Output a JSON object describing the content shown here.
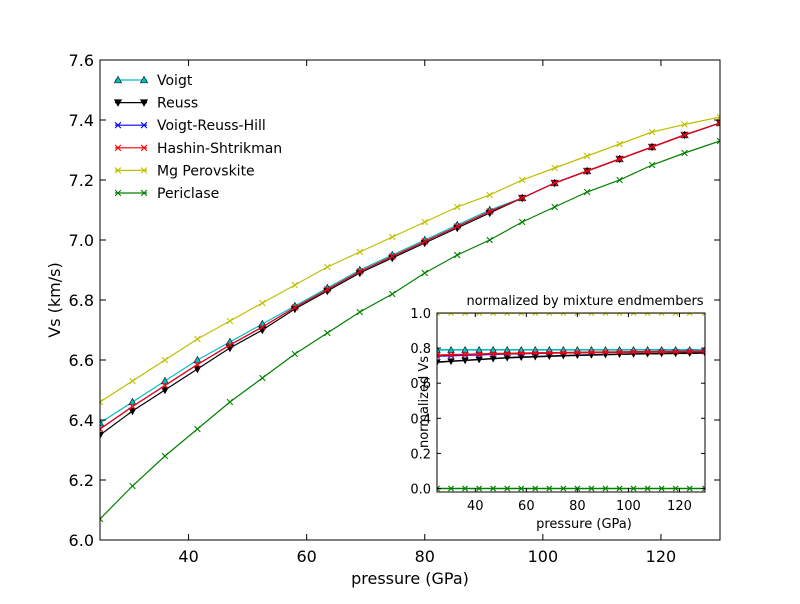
{
  "chart_data": [
    {
      "type": "line",
      "xlabel": "pressure (GPa)",
      "ylabel": "Vs (km/s)",
      "xlim": [
        25,
        130
      ],
      "ylim": [
        6.0,
        7.6
      ],
      "xticks": [
        "40",
        "60",
        "80",
        "100",
        "120"
      ],
      "yticks": [
        "6.0",
        "6.2",
        "6.4",
        "6.6",
        "6.8",
        "7.0",
        "7.2",
        "7.4",
        "7.6"
      ],
      "legend_position": "top-left",
      "grid": false,
      "x": [
        25,
        30.5,
        36,
        41.5,
        47,
        52.5,
        58,
        63.5,
        69,
        74.5,
        80,
        85.5,
        91,
        96.5,
        102,
        107.5,
        113,
        118.5,
        124,
        130
      ],
      "series": [
        {
          "name": "Voigt",
          "color": "#00bfbf",
          "marker": "triangle-up",
          "values": [
            6.39,
            6.46,
            6.53,
            6.6,
            6.66,
            6.72,
            6.78,
            6.84,
            6.9,
            6.95,
            7.0,
            7.05,
            7.1,
            7.14,
            7.19,
            7.23,
            7.27,
            7.31,
            7.35,
            7.39
          ]
        },
        {
          "name": "Reuss",
          "color": "#000000",
          "marker": "triangle-down",
          "values": [
            6.35,
            6.43,
            6.5,
            6.57,
            6.64,
            6.7,
            6.77,
            6.83,
            6.89,
            6.94,
            6.99,
            7.04,
            7.09,
            7.14,
            7.19,
            7.23,
            7.27,
            7.31,
            7.35,
            7.39
          ]
        },
        {
          "name": "Voigt-Reuss-Hill",
          "color": "#0000ff",
          "marker": "x",
          "values": [
            6.37,
            6.445,
            6.515,
            6.585,
            6.65,
            6.71,
            6.775,
            6.835,
            6.895,
            6.945,
            6.995,
            7.045,
            7.095,
            7.14,
            7.19,
            7.23,
            7.27,
            7.31,
            7.35,
            7.39
          ]
        },
        {
          "name": "Hashin-Shtrikman",
          "color": "#ff0000",
          "marker": "x",
          "values": [
            6.37,
            6.445,
            6.515,
            6.585,
            6.65,
            6.71,
            6.775,
            6.835,
            6.895,
            6.945,
            6.995,
            7.045,
            7.095,
            7.14,
            7.19,
            7.23,
            7.27,
            7.31,
            7.35,
            7.39
          ]
        },
        {
          "name": "Mg Perovskite",
          "color": "#bfbf00",
          "marker": "x",
          "values": [
            6.46,
            6.53,
            6.6,
            6.67,
            6.73,
            6.79,
            6.85,
            6.91,
            6.96,
            7.01,
            7.06,
            7.11,
            7.15,
            7.2,
            7.24,
            7.28,
            7.32,
            7.36,
            7.385,
            7.41
          ]
        },
        {
          "name": "Periclase",
          "color": "#008000",
          "marker": "x",
          "values": [
            6.07,
            6.18,
            6.28,
            6.37,
            6.46,
            6.54,
            6.62,
            6.69,
            6.76,
            6.82,
            6.89,
            6.95,
            7.0,
            7.06,
            7.11,
            7.16,
            7.2,
            7.25,
            7.29,
            7.33
          ]
        }
      ]
    },
    {
      "type": "line",
      "title": "normalized by mixture endmembers",
      "xlabel": "pressure (GPa)",
      "ylabel": "normalized Vs",
      "xlim": [
        25,
        130
      ],
      "ylim": [
        -0.02,
        1.0
      ],
      "xticks": [
        "40",
        "60",
        "80",
        "100",
        "120"
      ],
      "yticks": [
        "0.0",
        "0.2",
        "0.4",
        "0.6",
        "0.8",
        "1.0"
      ],
      "grid": false,
      "x": [
        25,
        30.5,
        36,
        41.5,
        47,
        52.5,
        58,
        63.5,
        69,
        74.5,
        80,
        85.5,
        91,
        96.5,
        102,
        107.5,
        113,
        118.5,
        124,
        130
      ],
      "series": [
        {
          "name": "Voigt",
          "color": "#00bfbf",
          "marker": "triangle-up",
          "values": [
            0.79,
            0.79,
            0.79,
            0.79,
            0.79,
            0.79,
            0.79,
            0.79,
            0.79,
            0.79,
            0.79,
            0.79,
            0.79,
            0.79,
            0.79,
            0.79,
            0.79,
            0.79,
            0.79,
            0.79
          ]
        },
        {
          "name": "Reuss",
          "color": "#000000",
          "marker": "triangle-down",
          "values": [
            0.72,
            0.725,
            0.73,
            0.735,
            0.74,
            0.745,
            0.748,
            0.751,
            0.754,
            0.757,
            0.759,
            0.761,
            0.763,
            0.765,
            0.767,
            0.768,
            0.769,
            0.77,
            0.771,
            0.772
          ]
        },
        {
          "name": "Voigt-Reuss-Hill",
          "color": "#0000ff",
          "marker": "x",
          "values": [
            0.755,
            0.757,
            0.76,
            0.762,
            0.765,
            0.767,
            0.769,
            0.77,
            0.772,
            0.773,
            0.774,
            0.775,
            0.776,
            0.777,
            0.778,
            0.779,
            0.78,
            0.78,
            0.781,
            0.781
          ]
        },
        {
          "name": "Hashin-Shtrikman",
          "color": "#ff0000",
          "marker": "x",
          "values": [
            0.76,
            0.762,
            0.764,
            0.766,
            0.768,
            0.769,
            0.771,
            0.772,
            0.773,
            0.774,
            0.775,
            0.776,
            0.777,
            0.777,
            0.778,
            0.778,
            0.779,
            0.779,
            0.78,
            0.78
          ]
        },
        {
          "name": "Mg Perovskite",
          "color": "#bfbf00",
          "marker": "x",
          "values": [
            1.0,
            1.0,
            1.0,
            1.0,
            1.0,
            1.0,
            1.0,
            1.0,
            1.0,
            1.0,
            1.0,
            1.0,
            1.0,
            1.0,
            1.0,
            1.0,
            1.0,
            1.0,
            1.0,
            1.0
          ]
        },
        {
          "name": "Periclase",
          "color": "#008000",
          "marker": "x",
          "values": [
            0.0,
            0.0,
            0.0,
            0.0,
            0.0,
            0.0,
            0.0,
            0.0,
            0.0,
            0.0,
            0.0,
            0.0,
            0.0,
            0.0,
            0.0,
            0.0,
            0.0,
            0.0,
            0.0,
            0.0
          ]
        }
      ]
    }
  ]
}
